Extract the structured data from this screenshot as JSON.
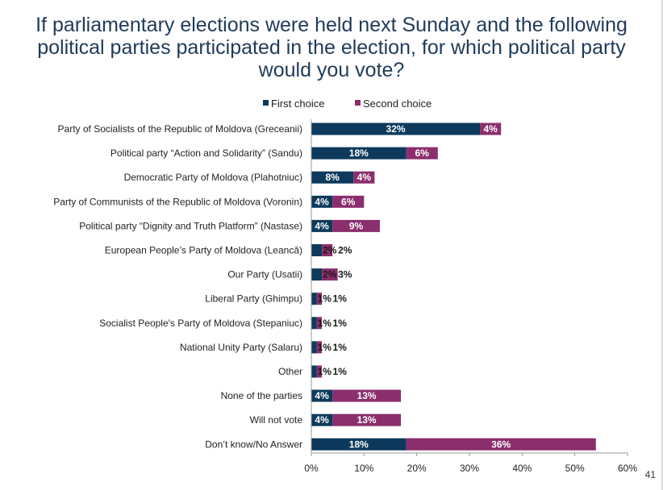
{
  "page": {
    "title": "If parliamentary elections were held next Sunday and the following political parties participated in the election, for which political party would you vote?",
    "page_number": "41"
  },
  "colors": {
    "first_choice": "#0d3a5c",
    "second_choice": "#8b2e6d",
    "title": "#1f3b5a"
  },
  "chart_data": {
    "type": "bar",
    "orientation": "horizontal",
    "stacked": true,
    "title": "If parliamentary elections were held next Sunday and the following political parties participated in the election, for which political party would you vote?",
    "categories": [
      "Party of Socialists of the Republic of Moldova (Greceanii)",
      "Political party “Action and Solidarity” (Sandu)",
      "Democratic Party of Moldova (Plahotniuc)",
      "Party of Communists of the Republic of Moldova (Voronin)",
      "Political party “Dignity and Truth Platform” (Nastase)",
      "European People’s Party of Moldova (Leancă)",
      "Our Party (Usatii)",
      "Liberal Party (Ghimpu)",
      "Socialist People's Party of Moldova (Stepaniuc)",
      "National Unity Party (Salaru)",
      "Other",
      "None of the parties",
      "Will not vote",
      "Don’t know/No Answer"
    ],
    "series": [
      {
        "name": "First choice",
        "values": [
          32,
          18,
          8,
          4,
          4,
          2,
          2,
          1,
          1,
          1,
          1,
          4,
          4,
          18
        ],
        "labels": [
          "32%",
          "18%",
          "8%",
          "4%",
          "4%",
          "2%",
          "2%",
          "1%",
          "1%",
          "1%",
          "1%",
          "4%",
          "4%",
          "18%"
        ]
      },
      {
        "name": "Second choice",
        "values": [
          4,
          6,
          4,
          6,
          9,
          2,
          3,
          1,
          1,
          1,
          1,
          13,
          13,
          36
        ],
        "labels": [
          "4%",
          "6%",
          "4%",
          "6%",
          "9%",
          "2%",
          "3%",
          "1%",
          "1%",
          "1%",
          "1%",
          "13%",
          "13%",
          "36%"
        ]
      }
    ],
    "xlim": [
      0,
      60
    ],
    "x_ticks": [
      "0%",
      "10%",
      "20%",
      "30%",
      "40%",
      "50%",
      "60%"
    ],
    "grid": false,
    "legend": "top"
  }
}
